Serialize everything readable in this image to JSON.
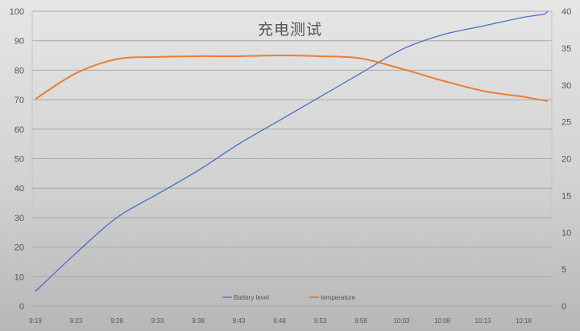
{
  "chart_data": {
    "type": "line",
    "title": "充电测试",
    "xlabel": "",
    "ylabel": "",
    "ylabel_right": "",
    "categories": [
      "9:19",
      "9:23",
      "9:28",
      "9:33",
      "9:38",
      "9:43",
      "9:48",
      "9:53",
      "9:58",
      "10:03",
      "10:08",
      "10:13",
      "10:18"
    ],
    "ylim": [
      0,
      100
    ],
    "yticks": [
      0,
      10,
      20,
      30,
      40,
      50,
      60,
      70,
      80,
      90,
      100
    ],
    "ylim_right": [
      0,
      40
    ],
    "yticks_right": [
      0,
      5,
      10,
      15,
      20,
      25,
      30,
      35,
      40
    ],
    "grid": true,
    "legend_position": "bottom-inside",
    "series": [
      {
        "name": "Battery level",
        "axis": "left",
        "color": "#4472c4",
        "values": [
          5,
          18,
          30,
          38,
          46,
          55,
          63,
          71,
          79,
          87,
          92,
          95,
          98
        ]
      },
      {
        "name": "temperature",
        "axis": "right",
        "color": "#ed7d31",
        "values": [
          28.1,
          31.6,
          33.5,
          33.8,
          33.9,
          33.9,
          34.0,
          33.9,
          33.6,
          32.2,
          30.6,
          29.2,
          28.4
        ]
      }
    ]
  }
}
